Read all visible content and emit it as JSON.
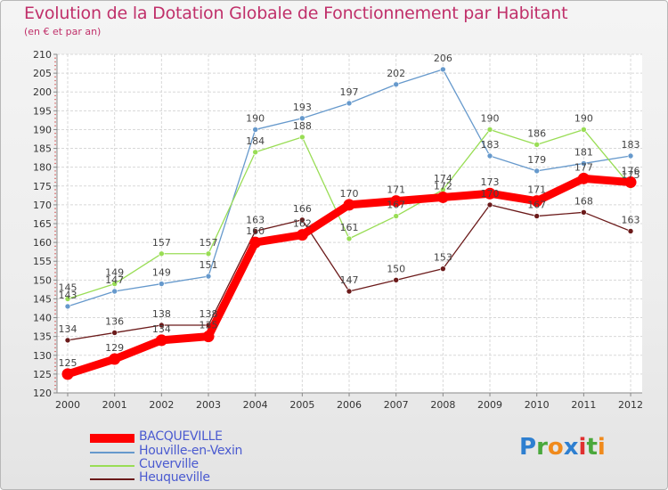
{
  "title": "Evolution de la Dotation Globale de Fonctionnement par Habitant",
  "subtitle": "(en € et par an)",
  "chart_data": {
    "type": "line",
    "title": "Evolution de la Dotation Globale de Fonctionnement par Habitant",
    "subtitle": "(en € et par an)",
    "xlabel": "",
    "ylabel": "",
    "categories": [
      "2000",
      "2001",
      "2002",
      "2003",
      "2004",
      "2005",
      "2006",
      "2007",
      "2008",
      "2009",
      "2010",
      "2011",
      "2012"
    ],
    "ylim": [
      120,
      210
    ],
    "yticks": [
      120,
      125,
      130,
      135,
      140,
      145,
      150,
      155,
      160,
      165,
      170,
      175,
      180,
      185,
      190,
      195,
      200,
      205,
      210
    ],
    "grid": true,
    "series": [
      {
        "name": "BACQUEVILLE",
        "color": "#ff0000",
        "values": [
          125,
          129,
          134,
          135,
          160,
          162,
          170,
          171,
          172,
          173,
          171,
          177,
          176
        ]
      },
      {
        "name": "Houville-en-Vexin",
        "color": "#6699cc",
        "values": [
          143,
          147,
          149,
          151,
          190,
          193,
          197,
          202,
          206,
          183,
          179,
          181,
          183
        ]
      },
      {
        "name": "Cuverville",
        "color": "#99dd55",
        "values": [
          145,
          149,
          157,
          157,
          184,
          188,
          161,
          167,
          174,
          190,
          186,
          190,
          175
        ]
      },
      {
        "name": "Heuqueville",
        "color": "#6b1a1a",
        "values": [
          134,
          136,
          138,
          138,
          163,
          166,
          147,
          150,
          153,
          170,
          167,
          168,
          163
        ]
      }
    ]
  },
  "legend": [
    {
      "label": "BACQUEVILLE",
      "color": "#ff0000"
    },
    {
      "label": "Houville-en-Vexin",
      "color": "#6699cc"
    },
    {
      "label": "Cuverville",
      "color": "#99dd55"
    },
    {
      "label": "Heuqueville",
      "color": "#6b1a1a"
    }
  ],
  "logo": {
    "text": "Proxiti",
    "letters": [
      "P",
      "r",
      "o",
      "x",
      "i",
      "t",
      "i"
    ],
    "colors": [
      "#2e7fd0",
      "#4aa83c",
      "#f08a1c",
      "#2e7fd0",
      "#e03030",
      "#4aa83c",
      "#f08a1c"
    ]
  }
}
